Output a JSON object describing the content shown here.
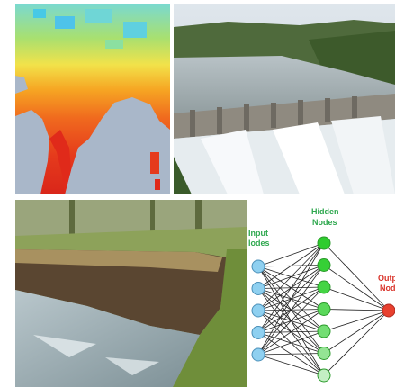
{
  "panels": [
    {
      "name": "temperature-heatmap-india",
      "kind": "map"
    },
    {
      "name": "dam-spillway",
      "kind": "photo"
    },
    {
      "name": "riverbank-erosion",
      "kind": "photo"
    },
    {
      "name": "neural-network-diagram",
      "kind": "diagram"
    }
  ],
  "neural_network": {
    "input_label_line1": "Input",
    "input_label_line2": "lodes",
    "hidden_label_line1": "Hidden",
    "hidden_label_line2": "Nodes",
    "output_label_line1": "Outp",
    "output_label_line2": "Nod",
    "input_node_count": 5,
    "hidden_node_count": 7,
    "output_node_count": 1,
    "colors": {
      "input": "#8fd0f0",
      "hidden": "#33cc33",
      "output": "#e8402f",
      "edges": "#222222",
      "labels": "#2fa84f"
    }
  }
}
